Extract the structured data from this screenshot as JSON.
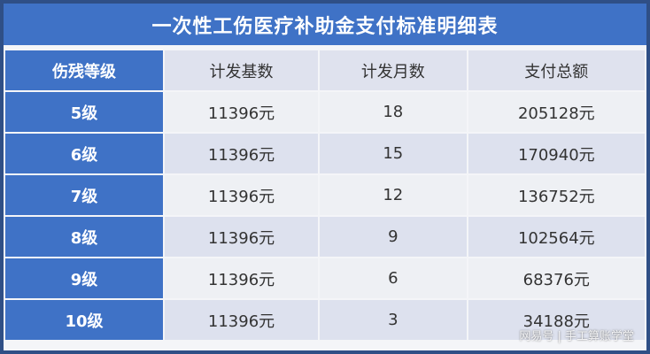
{
  "title": "一次性工伤医疗补助金支付标准明细表",
  "headers": [
    "伤残等级",
    "计发基数",
    "计发月数",
    "支付总额"
  ],
  "rows": [
    [
      "5级",
      "11396元",
      "18",
      "205128元"
    ],
    [
      "6级",
      "11396元",
      "15",
      "170940元"
    ],
    [
      "7级",
      "11396元",
      "12",
      "136752元"
    ],
    [
      "8级",
      "11396元",
      "9",
      "102564元"
    ],
    [
      "9级",
      "11396元",
      "6",
      "68376元"
    ],
    [
      "10级",
      "11396元",
      "3",
      "34188元"
    ]
  ],
  "watermark": "网易号 | 手工算账学堂"
}
